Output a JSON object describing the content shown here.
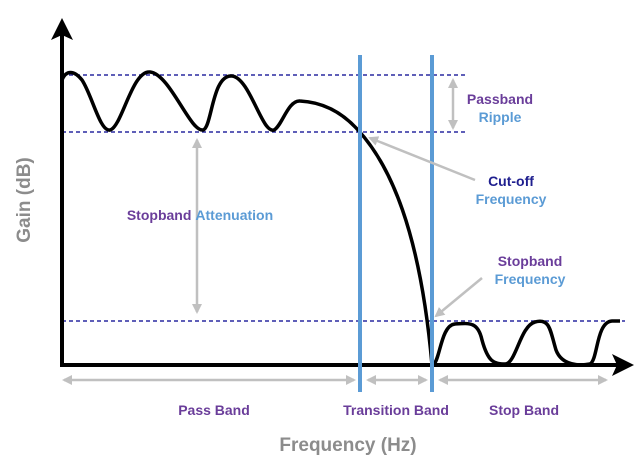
{
  "y_axis_label": "Gain (dB)",
  "x_axis_label": "Frequency (Hz)",
  "annotations": {
    "passband_ripple": [
      "Passband",
      "Ripple"
    ],
    "cutoff_frequency": [
      "Cut-off",
      "Frequency"
    ],
    "stopband_frequency": [
      "Stopband",
      "Frequency"
    ],
    "stopband_attenuation": [
      "Stopband",
      "Attenuation"
    ]
  },
  "bands": [
    "Pass Band",
    "Transition Band",
    "Stop Band"
  ]
}
